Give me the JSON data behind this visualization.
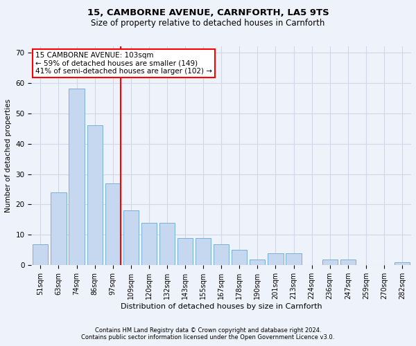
{
  "title1": "15, CAMBORNE AVENUE, CARNFORTH, LA5 9TS",
  "title2": "Size of property relative to detached houses in Carnforth",
  "xlabel": "Distribution of detached houses by size in Carnforth",
  "ylabel": "Number of detached properties",
  "footnote1": "Contains HM Land Registry data © Crown copyright and database right 2024.",
  "footnote2": "Contains public sector information licensed under the Open Government Licence v3.0.",
  "categories": [
    "51sqm",
    "63sqm",
    "74sqm",
    "86sqm",
    "97sqm",
    "109sqm",
    "120sqm",
    "132sqm",
    "143sqm",
    "155sqm",
    "167sqm",
    "178sqm",
    "190sqm",
    "201sqm",
    "213sqm",
    "224sqm",
    "236sqm",
    "247sqm",
    "259sqm",
    "270sqm",
    "282sqm"
  ],
  "values": [
    7,
    24,
    58,
    46,
    27,
    18,
    14,
    14,
    9,
    9,
    7,
    5,
    2,
    4,
    4,
    0,
    2,
    2,
    0,
    0,
    1
  ],
  "bar_color": "#c5d8f0",
  "bar_edge_color": "#7bafd4",
  "grid_color": "#d0d8e8",
  "bg_color": "#eef2fb",
  "annotation_text1": "15 CAMBORNE AVENUE: 103sqm",
  "annotation_text2": "← 59% of detached houses are smaller (149)",
  "annotation_text3": "41% of semi-detached houses are larger (102) →",
  "annotation_box_color": "white",
  "annotation_box_edge": "red",
  "red_line_color": "red",
  "red_line_bin_index": 4,
  "ylim": [
    0,
    72
  ],
  "yticks": [
    0,
    10,
    20,
    30,
    40,
    50,
    60,
    70
  ],
  "title1_fontsize": 9.5,
  "title2_fontsize": 8.5,
  "ylabel_fontsize": 7.5,
  "xlabel_fontsize": 8,
  "xtick_fontsize": 7,
  "ytick_fontsize": 7.5,
  "footnote_fontsize": 6,
  "annot_fontsize": 7.5
}
